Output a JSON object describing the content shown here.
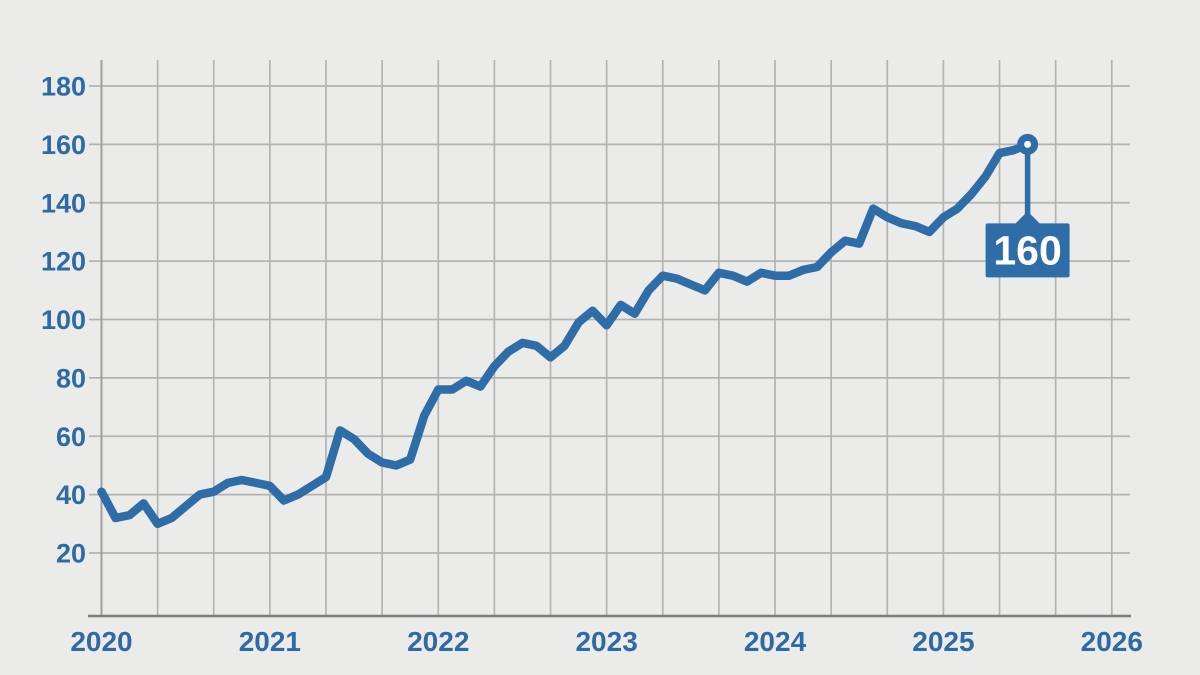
{
  "chart_data": {
    "type": "line",
    "title": "",
    "grid": true,
    "legend": false,
    "x_axis": {
      "tick_labels": [
        "2020",
        "2021",
        "2022",
        "2023",
        "2024",
        "2025",
        "2026"
      ],
      "minor_gridlines_per_year": 3,
      "note": "monthly data points from Jan 2020 to Jul 2025"
    },
    "y_axis": {
      "tick_labels": [
        "180",
        "160",
        "140",
        "120",
        "100",
        "80",
        "60",
        "40",
        "20"
      ],
      "tick_values": [
        180,
        160,
        140,
        120,
        100,
        80,
        60,
        40,
        20
      ],
      "min": 0,
      "max": 190,
      "tick_step": 20
    },
    "series": [
      {
        "name": "value",
        "start": "2020-01",
        "interval": "monthly",
        "values": [
          41,
          32,
          33,
          37,
          30,
          32,
          36,
          40,
          41,
          44,
          45,
          44,
          43,
          38,
          40,
          43,
          46,
          62,
          59,
          54,
          51,
          50,
          52,
          67,
          76,
          76,
          79,
          77,
          84,
          89,
          92,
          91,
          87,
          91,
          99,
          103,
          98,
          105,
          102,
          110,
          115,
          114,
          112,
          110,
          116,
          115,
          113,
          116,
          115,
          115,
          117,
          118,
          123,
          127,
          126,
          138,
          135,
          133,
          132,
          130,
          135,
          138,
          143,
          149,
          157,
          158,
          160
        ]
      }
    ],
    "annotation": {
      "label": "160",
      "attached_to": "last-point"
    },
    "colors": {
      "background": "#ebebe9",
      "line": "#2f6da8",
      "tick_text": "#2e6ba4",
      "gridline": "#b4b3b1",
      "axis": "#7e7d7b",
      "left_axis": "#a09f9d",
      "callout_fill": "#2f6da8",
      "callout_text": "#ffffff",
      "marker_center": "#ffffff"
    }
  }
}
